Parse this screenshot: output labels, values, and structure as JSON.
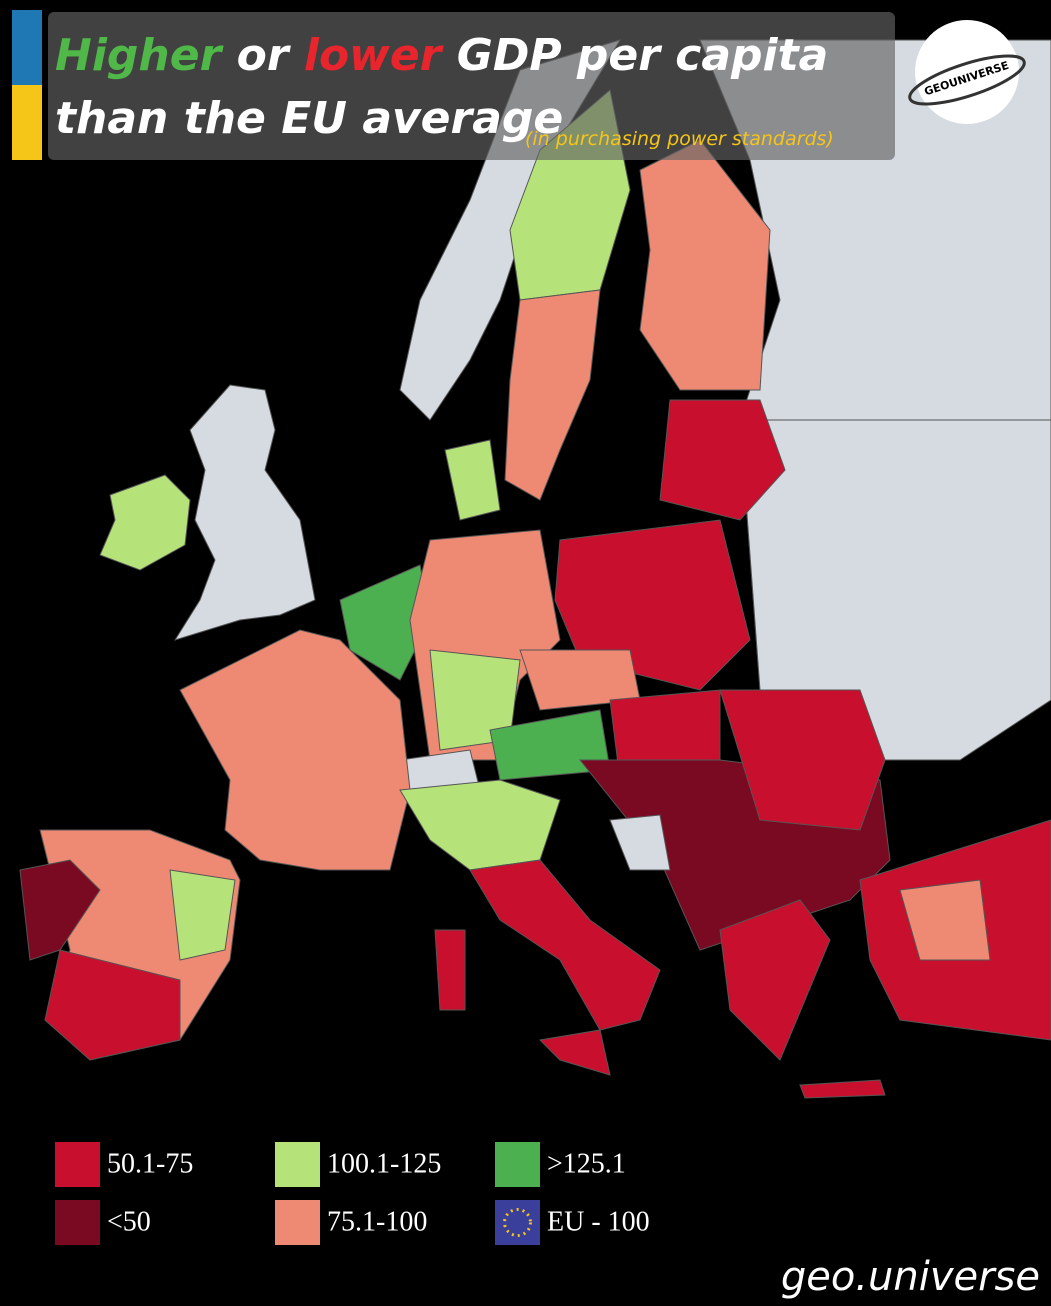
{
  "title": {
    "higher": "Higher",
    "or": "or",
    "lower": "lower",
    "rest": "GDP per capita",
    "line2": "than the EU average",
    "note": "(in purchasing power standards)"
  },
  "logo": "GEOUNIVERSE",
  "legend": [
    {
      "label": "50.1-75",
      "color": "#c8102e"
    },
    {
      "label": "100.1-125",
      "color": "#b6e27a"
    },
    {
      "label": ">125.1",
      "color": "#4caf50"
    },
    {
      "label": "<50",
      "color": "#7a0a22"
    },
    {
      "label": "75.1-100",
      "color": "#ee8a74"
    },
    {
      "label": "EU - 100",
      "color": "#3a3f9c"
    }
  ],
  "footer": "geo.universe"
}
